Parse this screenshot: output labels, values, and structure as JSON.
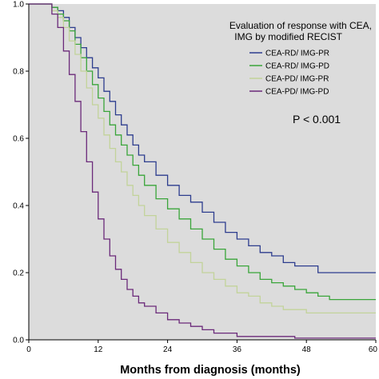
{
  "chart_data": {
    "type": "line",
    "step": true,
    "xlabel": "Months from diagnosis (months)",
    "ylabel": "",
    "xlim": [
      0,
      60
    ],
    "ylim": [
      0,
      1.0
    ],
    "xticks": [
      "0",
      "12",
      "24",
      "36",
      "48",
      "60"
    ],
    "yticks": [
      "0.0",
      "0.2",
      "0.4",
      "0.6",
      "0.8",
      "1.0"
    ],
    "grid": false,
    "legend_position": "top-right",
    "legend_title": [
      "Evaluation of response with CEA,",
      "IMG by modified RECIST"
    ],
    "annotation": "P < 0.001",
    "colors": {
      "plot_bg": "#dcdcdc",
      "page_bg": "#ffffff"
    },
    "series": [
      {
        "name": "CEA-RD/ IMG-PR",
        "color": "#2d3d8e",
        "x": [
          0,
          3,
          4,
          5,
          6,
          7,
          8,
          9,
          10,
          11,
          12,
          13,
          14,
          15,
          16,
          17,
          18,
          19,
          20,
          22,
          24,
          26,
          28,
          30,
          32,
          34,
          36,
          38,
          40,
          42,
          44,
          46,
          48,
          50,
          52,
          54,
          56,
          58,
          60
        ],
        "y": [
          1.0,
          1.0,
          0.99,
          0.98,
          0.96,
          0.93,
          0.9,
          0.87,
          0.84,
          0.81,
          0.78,
          0.74,
          0.71,
          0.67,
          0.64,
          0.61,
          0.58,
          0.55,
          0.53,
          0.49,
          0.46,
          0.43,
          0.41,
          0.38,
          0.35,
          0.32,
          0.3,
          0.28,
          0.26,
          0.25,
          0.23,
          0.22,
          0.22,
          0.2,
          0.2,
          0.2,
          0.2,
          0.2,
          0.2
        ]
      },
      {
        "name": "CEA-RD/ IMG-PD",
        "color": "#3aa53a",
        "x": [
          0,
          3,
          4,
          5,
          6,
          7,
          8,
          9,
          10,
          11,
          12,
          13,
          14,
          15,
          16,
          17,
          18,
          19,
          20,
          22,
          24,
          26,
          28,
          30,
          32,
          34,
          36,
          38,
          40,
          42,
          44,
          46,
          48,
          50,
          52,
          54,
          56,
          58,
          60
        ],
        "y": [
          1.0,
          1.0,
          0.99,
          0.97,
          0.95,
          0.92,
          0.88,
          0.84,
          0.8,
          0.76,
          0.72,
          0.68,
          0.64,
          0.61,
          0.58,
          0.55,
          0.52,
          0.49,
          0.46,
          0.42,
          0.39,
          0.36,
          0.33,
          0.3,
          0.27,
          0.24,
          0.22,
          0.2,
          0.18,
          0.17,
          0.16,
          0.15,
          0.14,
          0.13,
          0.12,
          0.12,
          0.12,
          0.12,
          0.12
        ]
      },
      {
        "name": "CEA-PD/ IMG-PR",
        "color": "#c2d39a",
        "x": [
          0,
          3,
          4,
          5,
          6,
          7,
          8,
          9,
          10,
          11,
          12,
          13,
          14,
          15,
          16,
          17,
          18,
          19,
          20,
          22,
          24,
          26,
          28,
          30,
          32,
          34,
          36,
          38,
          40,
          42,
          44,
          46,
          48,
          50,
          52,
          54,
          56,
          58,
          60
        ],
        "y": [
          1.0,
          1.0,
          0.98,
          0.96,
          0.93,
          0.89,
          0.85,
          0.8,
          0.75,
          0.7,
          0.66,
          0.61,
          0.57,
          0.53,
          0.5,
          0.46,
          0.43,
          0.4,
          0.37,
          0.33,
          0.29,
          0.26,
          0.23,
          0.2,
          0.18,
          0.16,
          0.14,
          0.13,
          0.11,
          0.1,
          0.09,
          0.09,
          0.08,
          0.08,
          0.08,
          0.08,
          0.08,
          0.08,
          0.08
        ]
      },
      {
        "name": "CEA-PD/ IMG-PD",
        "color": "#6b2a7a",
        "x": [
          0,
          3,
          4,
          5,
          6,
          7,
          8,
          9,
          10,
          11,
          12,
          13,
          14,
          15,
          16,
          17,
          18,
          19,
          20,
          22,
          24,
          26,
          28,
          30,
          32,
          34,
          36,
          38,
          40,
          42,
          44,
          46,
          48,
          50,
          52,
          54,
          56,
          58,
          60
        ],
        "y": [
          1.0,
          1.0,
          0.97,
          0.93,
          0.86,
          0.79,
          0.71,
          0.62,
          0.53,
          0.44,
          0.36,
          0.3,
          0.25,
          0.21,
          0.18,
          0.15,
          0.13,
          0.11,
          0.1,
          0.08,
          0.06,
          0.05,
          0.04,
          0.03,
          0.02,
          0.02,
          0.01,
          0.01,
          0.01,
          0.01,
          0.01,
          0.005,
          0.005,
          0.005,
          0.005,
          0.005,
          0.005,
          0.005,
          0.005
        ]
      }
    ]
  }
}
